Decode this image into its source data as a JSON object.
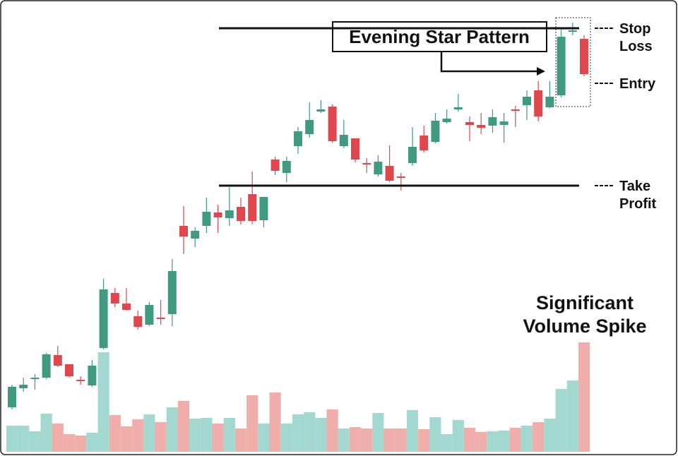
{
  "chart_data": {
    "type": "candlestick",
    "open": [
      69,
      96,
      109,
      111,
      143,
      130,
      108,
      100,
      153,
      231,
      216,
      198,
      186,
      196,
      201,
      326,
      308,
      326,
      345,
      337,
      353,
      371,
      334,
      420,
      401,
      439,
      456,
      488,
      495,
      439,
      450,
      415,
      399,
      411,
      396,
      415,
      454,
      445,
      473,
      491,
      473,
      469,
      468,
      469,
      491,
      497,
      518,
      494,
      511,
      601,
      591
    ],
    "high": [
      101,
      111,
      116,
      146,
      156,
      130,
      113,
      136,
      251,
      238,
      238,
      206,
      218,
      221,
      279,
      354,
      324,
      366,
      356,
      381,
      366,
      403,
      367,
      424,
      424,
      466,
      501,
      504,
      498,
      476,
      450,
      422,
      426,
      440,
      401,
      466,
      468,
      486,
      491,
      513,
      481,
      486,
      491,
      486,
      496,
      518,
      531,
      531,
      606,
      614,
      596
    ],
    "low": [
      66,
      91,
      94,
      109,
      126,
      111,
      101,
      98,
      151,
      211,
      206,
      179,
      184,
      186,
      184,
      286,
      296,
      316,
      316,
      326,
      328,
      328,
      324,
      398,
      388,
      428,
      451,
      486,
      444,
      436,
      416,
      401,
      396,
      388,
      376,
      411,
      430,
      443,
      471,
      488,
      446,
      456,
      458,
      444,
      466,
      476,
      474,
      493,
      508,
      596,
      538
    ],
    "close": [
      98,
      101,
      111,
      144,
      128,
      113,
      106,
      128,
      236,
      216,
      207,
      183,
      214,
      194,
      262,
      311,
      319,
      346,
      338,
      348,
      333,
      333,
      367,
      404,
      418,
      460,
      476,
      491,
      446,
      455,
      420,
      413,
      417,
      390,
      394,
      438,
      433,
      475,
      478,
      494,
      469,
      465,
      480,
      474,
      489,
      509,
      481,
      509,
      594,
      603,
      541
    ],
    "volume": [
      37,
      37,
      29,
      54,
      40,
      25,
      23,
      27,
      141,
      52,
      36,
      46,
      53,
      42,
      63,
      72,
      47,
      48,
      40,
      48,
      33,
      80,
      40,
      84,
      40,
      53,
      56,
      48,
      60,
      33,
      35,
      33,
      55,
      33,
      33,
      59,
      32,
      49,
      25,
      45,
      34,
      28,
      29,
      30,
      34,
      37,
      42,
      47,
      89,
      101,
      155
    ],
    "ylim": [
      0,
      646
    ],
    "vlim": [
      0,
      160
    ],
    "up_color": "#3f9a80",
    "down_color": "#e0474c",
    "volume_up_color": "#a3d8d0",
    "volume_down_color": "#f0aeab",
    "pattern_label": "Evening Star Pattern",
    "levels": [
      {
        "lines": [
          "Stop",
          "Loss"
        ],
        "value": 606
      },
      {
        "lines": [
          "Entry"
        ],
        "value": 528
      },
      {
        "lines": [
          "Take",
          "Profit"
        ],
        "value": 383
      }
    ],
    "volume_note": [
      "Significant",
      "Volume Spike"
    ]
  }
}
